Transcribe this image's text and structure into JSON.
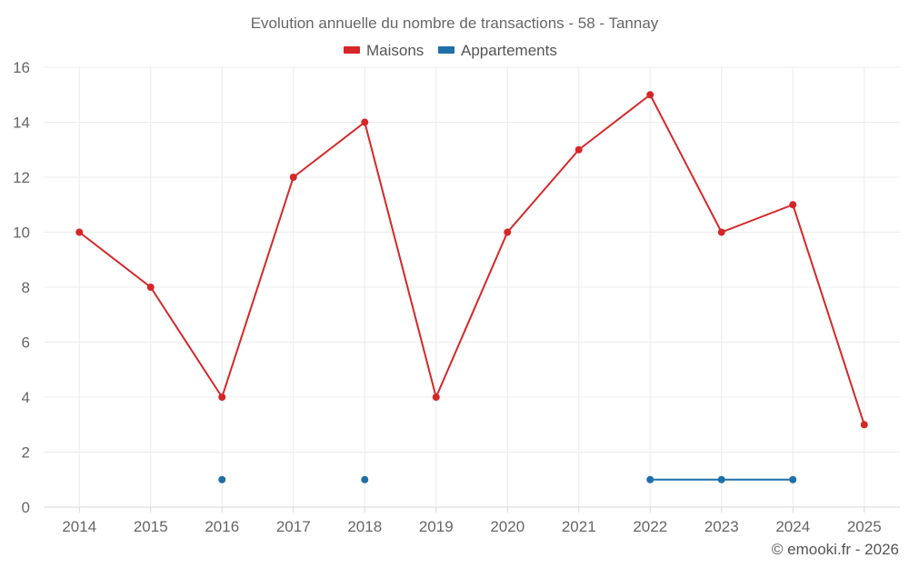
{
  "chart_data": {
    "type": "line",
    "title": "Evolution annuelle du nombre de transactions - 58 - Tannay",
    "categories": [
      "2014",
      "2015",
      "2016",
      "2017",
      "2018",
      "2019",
      "2020",
      "2021",
      "2022",
      "2023",
      "2024",
      "2025"
    ],
    "ylim": [
      0,
      16
    ],
    "yticks": [
      0,
      2,
      4,
      6,
      8,
      10,
      12,
      14,
      16
    ],
    "grid": true,
    "legend_position": "top-center",
    "xlabel": "",
    "ylabel": "",
    "series": [
      {
        "name": "Maisons",
        "color": "#d62728",
        "values": [
          10,
          8,
          4,
          12,
          14,
          4,
          10,
          13,
          15,
          10,
          11,
          3
        ]
      },
      {
        "name": "Appartements",
        "color": "#1f6fa8",
        "values": [
          null,
          null,
          1,
          null,
          1,
          null,
          null,
          null,
          1,
          1,
          1,
          null
        ]
      }
    ]
  },
  "credit": "© emooki.fr - 2026"
}
